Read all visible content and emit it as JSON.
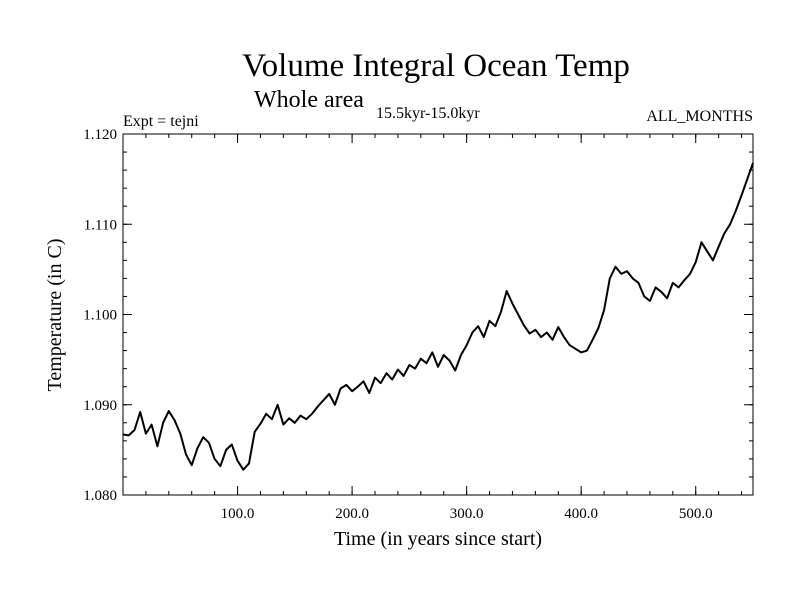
{
  "chart_data": {
    "type": "line",
    "title": "Volume Integral Ocean Temp",
    "subtitle": "Whole area",
    "subtitle_small": "15.5kyr-15.0kyr",
    "left_label": "Expt = tejni",
    "right_label": "ALL_MONTHS",
    "xlabel": "Time (in years since start)",
    "ylabel": "Temperature (in C)",
    "xlim": [
      0,
      550
    ],
    "ylim": [
      1.08,
      1.12
    ],
    "x_ticks_labeled": [
      100,
      200,
      300,
      400,
      500
    ],
    "x_tick_labels": [
      "100.0",
      "200.0",
      "300.0",
      "400.0",
      "500.0"
    ],
    "y_ticks_labeled": [
      1.08,
      1.09,
      1.1,
      1.11,
      1.12
    ],
    "y_tick_labels": [
      "1.080",
      "1.090",
      "1.100",
      "1.110",
      "1.120"
    ],
    "x_minor_step": 20,
    "y_minor_step": 0.002,
    "series": [
      {
        "name": "tejni",
        "x": [
          0,
          5,
          10,
          15,
          20,
          25,
          30,
          35,
          40,
          45,
          50,
          55,
          60,
          65,
          70,
          75,
          80,
          85,
          90,
          95,
          100,
          105,
          110,
          115,
          120,
          125,
          130,
          135,
          140,
          145,
          150,
          155,
          160,
          165,
          170,
          175,
          180,
          185,
          190,
          195,
          200,
          205,
          210,
          215,
          220,
          225,
          230,
          235,
          240,
          245,
          250,
          255,
          260,
          265,
          270,
          275,
          280,
          285,
          290,
          295,
          300,
          305,
          310,
          315,
          320,
          325,
          330,
          335,
          340,
          345,
          350,
          355,
          360,
          365,
          370,
          375,
          380,
          385,
          390,
          395,
          400,
          405,
          410,
          415,
          420,
          425,
          430,
          435,
          440,
          445,
          450,
          455,
          460,
          465,
          470,
          475,
          480,
          485,
          490,
          495,
          500,
          505,
          510,
          515,
          520,
          525,
          530,
          535,
          540,
          545,
          550
        ],
        "values": [
          1.0867,
          1.0866,
          1.0872,
          1.0892,
          1.0868,
          1.0878,
          1.0854,
          1.088,
          1.0893,
          1.0883,
          1.0868,
          1.0845,
          1.0833,
          1.0852,
          1.0864,
          1.0858,
          1.084,
          1.0832,
          1.085,
          1.0856,
          1.0838,
          1.0828,
          1.0835,
          1.087,
          1.0879,
          1.089,
          1.0884,
          1.09,
          1.0878,
          1.0885,
          1.088,
          1.0888,
          1.0884,
          1.089,
          1.0898,
          1.0905,
          1.0912,
          1.09,
          1.0918,
          1.0922,
          1.0915,
          1.092,
          1.0926,
          1.0913,
          1.093,
          1.0924,
          1.0935,
          1.0928,
          1.0939,
          1.0932,
          1.0944,
          1.094,
          1.0951,
          1.0946,
          1.0958,
          1.0942,
          1.0955,
          1.0949,
          1.0938,
          1.0955,
          1.0966,
          1.098,
          1.0987,
          1.0975,
          1.0993,
          1.0987,
          1.1003,
          1.1026,
          1.1012,
          1.1,
          1.0988,
          1.0979,
          1.0983,
          1.0975,
          1.098,
          1.0972,
          1.0986,
          1.0975,
          1.0966,
          1.0962,
          1.0958,
          1.096,
          1.0972,
          1.0985,
          1.1005,
          1.104,
          1.1053,
          1.1045,
          1.1048,
          1.104,
          1.1035,
          1.102,
          1.1015,
          1.103,
          1.1025,
          1.1018,
          1.1035,
          1.103,
          1.1038,
          1.1045,
          1.1058,
          1.108,
          1.107,
          1.106,
          1.1075,
          1.109,
          1.11,
          1.1115,
          1.1132,
          1.115,
          1.1168
        ]
      }
    ]
  }
}
